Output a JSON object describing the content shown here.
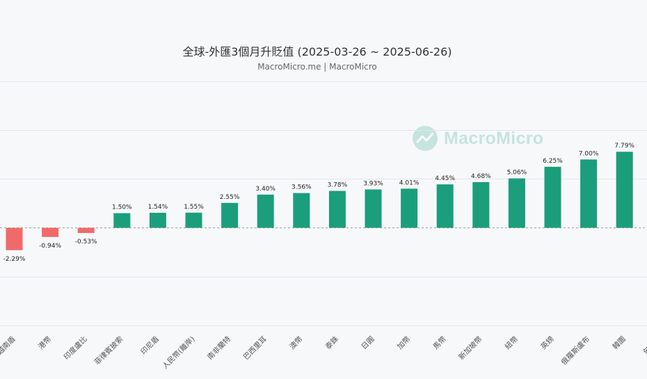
{
  "chart_data": {
    "type": "bar",
    "title": "全球-外匯3個月升貶值 (2025-03-26 ~ 2025-06-26)",
    "subtitle": "MacroMicro.me | MacroMicro",
    "categories": [
      "越南盾",
      "港幣",
      "印度盧比",
      "菲律賓披索",
      "印尼盾",
      "人民幣(離岸)",
      "南非蘭特",
      "巴西里耳",
      "澳幣",
      "泰銖",
      "日圓",
      "加幣",
      "馬幣",
      "新加坡幣",
      "紐幣",
      "英鎊",
      "俄羅斯盧布",
      "韓圜",
      "匈牙利"
    ],
    "values": [
      -2.29,
      -0.94,
      -0.53,
      1.5,
      1.54,
      1.55,
      2.55,
      3.4,
      3.56,
      3.78,
      3.93,
      4.01,
      4.45,
      4.68,
      5.06,
      6.25,
      7.0,
      7.79,
      null
    ],
    "value_labels": [
      "-2.29%",
      "-0.94%",
      "-0.53%",
      "1.50%",
      "1.54%",
      "1.55%",
      "2.55%",
      "3.40%",
      "3.56%",
      "3.78%",
      "3.93%",
      "4.01%",
      "4.45%",
      "4.68%",
      "5.06%",
      "6.25%",
      "7.00%",
      "7.79%",
      ""
    ],
    "ylim": [
      -10,
      15
    ],
    "grid": true,
    "legend": "none",
    "colors": {
      "positive": "#1b9e7c",
      "negative": "#f06a6a",
      "grid": "#e3e5ea",
      "zero_line": "#9a9a9a"
    }
  },
  "watermark": {
    "text": "MacroMicro"
  }
}
